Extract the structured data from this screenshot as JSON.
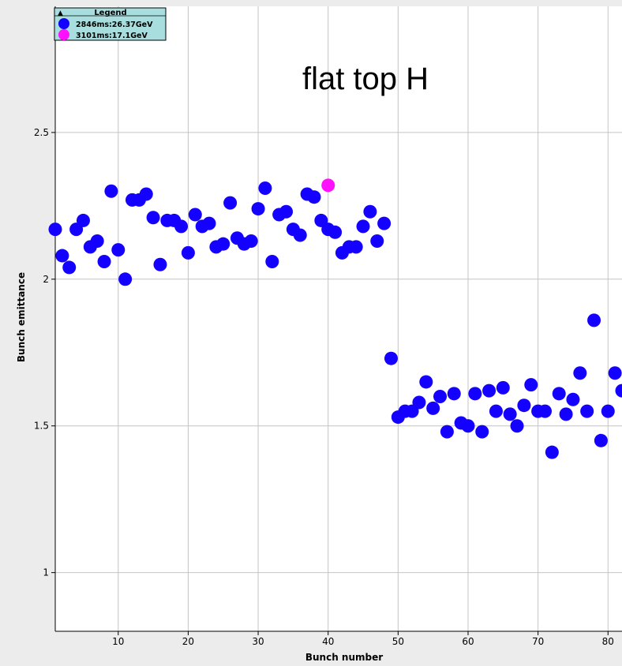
{
  "chart_data": {
    "type": "scatter",
    "xlabel": "Bunch number",
    "ylabel": "Bunch emittance",
    "xlim": [
      1,
      82
    ],
    "ylim": [
      0.8,
      2.93
    ],
    "x_ticks": [
      10,
      20,
      30,
      40,
      50,
      60,
      70,
      80
    ],
    "y_ticks": [
      1,
      1.5,
      2,
      2.5
    ],
    "y_tick_labels": [
      "1",
      "1.5",
      "2",
      "2.5"
    ],
    "grid": true,
    "annotation": "flat top H",
    "legend": {
      "title": "Legend",
      "placement": "top-left"
    },
    "series": [
      {
        "name": "2846ms:26.37GeV",
        "color": "#1400ff",
        "points": [
          [
            1,
            2.17
          ],
          [
            2,
            2.08
          ],
          [
            3,
            2.04
          ],
          [
            4,
            2.17
          ],
          [
            5,
            2.2
          ],
          [
            6,
            2.11
          ],
          [
            7,
            2.13
          ],
          [
            8,
            2.06
          ],
          [
            9,
            2.3
          ],
          [
            10,
            2.1
          ],
          [
            11,
            2.0
          ],
          [
            12,
            2.27
          ],
          [
            13,
            2.27
          ],
          [
            14,
            2.29
          ],
          [
            15,
            2.21
          ],
          [
            16,
            2.05
          ],
          [
            17,
            2.2
          ],
          [
            18,
            2.2
          ],
          [
            19,
            2.18
          ],
          [
            20,
            2.09
          ],
          [
            21,
            2.22
          ],
          [
            22,
            2.18
          ],
          [
            23,
            2.19
          ],
          [
            24,
            2.11
          ],
          [
            25,
            2.12
          ],
          [
            26,
            2.26
          ],
          [
            27,
            2.14
          ],
          [
            28,
            2.12
          ],
          [
            29,
            2.13
          ],
          [
            30,
            2.24
          ],
          [
            31,
            2.31
          ],
          [
            32,
            2.06
          ],
          [
            33,
            2.22
          ],
          [
            34,
            2.23
          ],
          [
            35,
            2.17
          ],
          [
            36,
            2.15
          ],
          [
            37,
            2.29
          ],
          [
            38,
            2.28
          ],
          [
            39,
            2.2
          ],
          [
            40,
            2.17
          ],
          [
            41,
            2.16
          ],
          [
            42,
            2.09
          ],
          [
            43,
            2.11
          ],
          [
            44,
            2.11
          ],
          [
            45,
            2.18
          ],
          [
            46,
            2.23
          ],
          [
            47,
            2.13
          ],
          [
            48,
            2.19
          ],
          [
            49,
            1.73
          ],
          [
            50,
            1.53
          ],
          [
            51,
            1.55
          ],
          [
            52,
            1.55
          ],
          [
            53,
            1.58
          ],
          [
            54,
            1.65
          ],
          [
            55,
            1.56
          ],
          [
            56,
            1.6
          ],
          [
            57,
            1.48
          ],
          [
            58,
            1.61
          ],
          [
            59,
            1.51
          ],
          [
            60,
            1.5
          ],
          [
            61,
            1.61
          ],
          [
            62,
            1.48
          ],
          [
            63,
            1.62
          ],
          [
            64,
            1.55
          ],
          [
            65,
            1.63
          ],
          [
            66,
            1.54
          ],
          [
            67,
            1.5
          ],
          [
            68,
            1.57
          ],
          [
            69,
            1.64
          ],
          [
            70,
            1.55
          ],
          [
            71,
            1.55
          ],
          [
            72,
            1.41
          ],
          [
            73,
            1.61
          ],
          [
            74,
            1.54
          ],
          [
            75,
            1.59
          ],
          [
            76,
            1.68
          ],
          [
            77,
            1.55
          ],
          [
            78,
            1.86
          ],
          [
            79,
            1.45
          ],
          [
            80,
            1.55
          ],
          [
            81,
            1.68
          ],
          [
            82,
            1.62
          ]
        ]
      },
      {
        "name": "3101ms:17.1GeV",
        "color": "#ff10ff",
        "points": [
          [
            40,
            2.32
          ]
        ]
      }
    ]
  }
}
